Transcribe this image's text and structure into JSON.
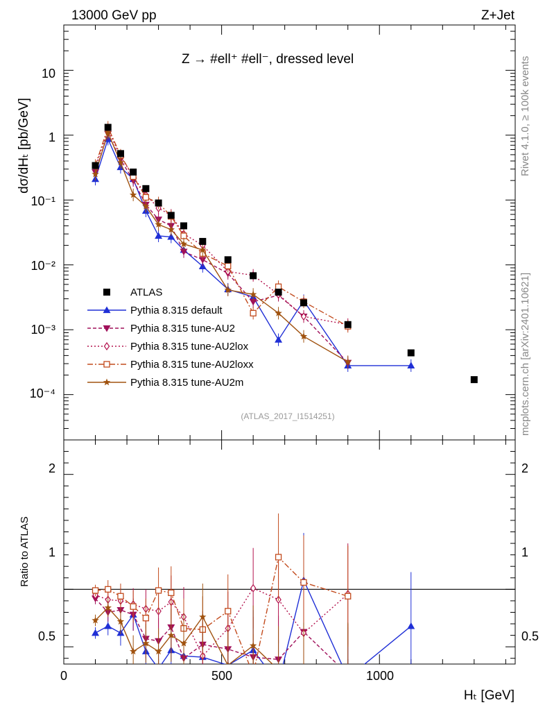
{
  "header": {
    "left": "13000 GeV pp",
    "right": "Z+Jet"
  },
  "side_labels": {
    "rivet": "Rivet 4.1.0, ≥ 100k events",
    "mcplots": "mcplots.cern.ch [arXiv:2401.10621]"
  },
  "analysis_id": "(ATLAS_2017_I1514251)",
  "plot_title": "Z → #ell⁺ #ell⁻, dressed level",
  "axis_labels": {
    "y_main": "dσ/dHₜ [pb/GeV]",
    "y_ratio": "Ratio to ATLAS",
    "x": "Hₜ [GeV]"
  },
  "tick_labels": {
    "main_y": [
      "10",
      "1",
      "10⁻¹",
      "10⁻²",
      "10⁻³",
      "10⁻⁴"
    ],
    "ratio_y": [
      "2",
      "1",
      "0.5"
    ],
    "x": [
      "0",
      "500",
      "1000"
    ]
  },
  "chart_data": {
    "type": "line",
    "x_range": [
      0,
      1430
    ],
    "main_y_range_log": [
      2e-05,
      50
    ],
    "ratio_y_range": [
      0.35,
      2.3
    ],
    "legend": [
      "ATLAS",
      "Pythia 8.315 default",
      "Pythia 8.315 tune-AU2",
      "Pythia 8.315 tune-AU2lox",
      "Pythia 8.315 tune-AU2loxx",
      "Pythia 8.315 tune-AU2m"
    ],
    "data": {
      "name": "ATLAS",
      "x": [
        100,
        140,
        180,
        220,
        260,
        300,
        340,
        380,
        440,
        520,
        600,
        680,
        760,
        900,
        1100,
        1300
      ],
      "y": [
        0.34,
        1.32,
        0.52,
        0.27,
        0.15,
        0.09,
        0.058,
        0.04,
        0.023,
        0.012,
        0.0068,
        0.0038,
        0.0026,
        0.0012,
        0.00044,
        0.00017
      ]
    },
    "series": [
      {
        "name": "Pythia 8.315 default",
        "color": "#1f2fd6",
        "dash": "",
        "marker": "triangle-up",
        "x": [
          100,
          140,
          180,
          220,
          260,
          300,
          340,
          380,
          440,
          520,
          600,
          680,
          760,
          900,
          1100
        ],
        "y": [
          0.21,
          0.87,
          0.32,
          0.21,
          0.068,
          0.028,
          0.027,
          0.017,
          0.0095,
          0.0042,
          0.0032,
          0.0007,
          0.0028,
          0.00028,
          0.00028
        ],
        "ratio": [
          0.62,
          0.68,
          0.62,
          0.78,
          0.46,
          0.31,
          0.47,
          0.42,
          0.41,
          0.34,
          0.47,
          0.18,
          1.08,
          0.23,
          0.68
        ]
      },
      {
        "name": "Pythia 8.315 tune-AU2",
        "color": "#a0105a",
        "dash": "5,3",
        "marker": "triangle-down",
        "x": [
          100,
          140,
          180,
          220,
          260,
          300,
          340,
          380,
          440,
          520,
          600,
          680,
          760,
          900
        ],
        "y": [
          0.27,
          1.05,
          0.42,
          0.2,
          0.085,
          0.05,
          0.04,
          0.016,
          0.012,
          0.0074,
          0.0027,
          0.0034,
          0.0016,
          0.00031
        ],
        "ratio": [
          0.92,
          0.8,
          0.82,
          0.78,
          0.57,
          0.55,
          0.67,
          0.4,
          0.52,
          0.48,
          0.41,
          0.39,
          0.63,
          0.26
        ]
      },
      {
        "name": "Pythia 8.315 tune-AU2lox",
        "color": "#b3124d",
        "dash": "2,3",
        "marker": "diamond-open",
        "x": [
          100,
          140,
          180,
          220,
          260,
          300,
          340,
          380,
          440,
          520,
          600,
          680,
          760,
          900
        ],
        "y": [
          0.32,
          1.2,
          0.47,
          0.23,
          0.12,
          0.075,
          0.058,
          0.03,
          0.02,
          0.0079,
          0.0069,
          0.0035,
          0.0016,
          0.0012
        ],
        "ratio": [
          0.95,
          0.91,
          0.9,
          0.87,
          0.83,
          0.81,
          0.89,
          0.76,
          0.42,
          0.66,
          1.01,
          0.91,
          0.62,
          0.96
        ]
      },
      {
        "name": "Pythia 8.315 tune-AU2loxx",
        "color": "#c24a1c",
        "dash": "8,3,2,3",
        "marker": "square-open",
        "x": [
          100,
          140,
          180,
          220,
          260,
          300,
          340,
          380,
          440,
          520,
          600,
          680,
          760,
          900
        ],
        "y": [
          0.34,
          1.32,
          0.49,
          0.23,
          0.11,
          0.09,
          0.056,
          0.028,
          0.015,
          0.0096,
          0.0018,
          0.0046,
          0.0027,
          0.00113
        ],
        "ratio": [
          0.99,
          1.0,
          0.94,
          0.85,
          0.75,
          0.99,
          0.97,
          0.66,
          0.65,
          0.81,
          0.26,
          1.28,
          1.06,
          0.94
        ]
      },
      {
        "name": "Pythia 8.315 tune-AU2m",
        "color": "#a0520f",
        "dash": "",
        "marker": "star",
        "x": [
          100,
          140,
          180,
          220,
          260,
          300,
          340,
          380,
          440,
          520,
          600,
          680,
          760,
          900
        ],
        "y": [
          0.25,
          1.1,
          0.38,
          0.12,
          0.08,
          0.042,
          0.035,
          0.021,
          0.017,
          0.0041,
          0.0035,
          0.0018,
          0.00079,
          0.00032
        ],
        "ratio": [
          0.73,
          0.84,
          0.72,
          0.46,
          0.53,
          0.46,
          0.6,
          0.53,
          0.76,
          0.34,
          0.51,
          0.3,
          0.3,
          0.27
        ]
      }
    ]
  }
}
